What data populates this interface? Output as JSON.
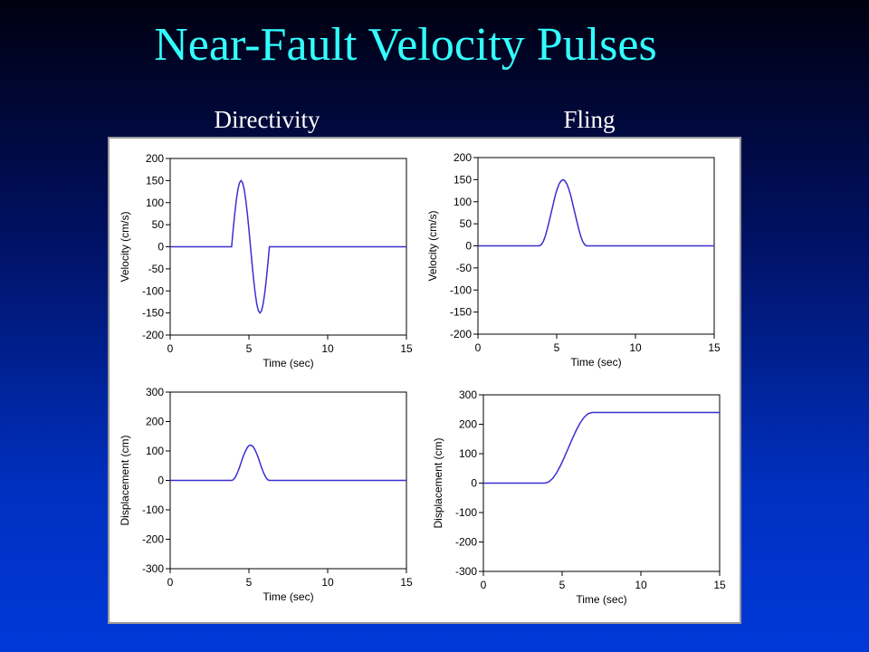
{
  "title": "Near-Fault Velocity Pulses",
  "column_labels": [
    "Directivity",
    "Fling"
  ],
  "chart_data": [
    {
      "type": "line",
      "xlabel": "Time (sec)",
      "ylabel": "Velocity (cm/s)",
      "xlim": [
        0,
        15
      ],
      "xticks": [
        0,
        5,
        10,
        15
      ],
      "ylim": [
        -200,
        200
      ],
      "yticks": [
        -200,
        -150,
        -100,
        -50,
        0,
        50,
        100,
        150,
        200
      ],
      "x": [
        0,
        3.9,
        4.0,
        4.1,
        4.2,
        4.3,
        4.4,
        4.5,
        4.6,
        4.7,
        4.8,
        4.9,
        5.0,
        5.1,
        5.2,
        5.3,
        5.4,
        5.5,
        5.6,
        5.7,
        5.8,
        5.9,
        6.0,
        6.1,
        6.2,
        6.3,
        15
      ],
      "series": [
        {
          "color": "#3a2fd0",
          "values": [
            0,
            0,
            39,
            75,
            106,
            130,
            145,
            150,
            145,
            130,
            106,
            75,
            39,
            0,
            -39,
            -75,
            -106,
            -130,
            -145,
            -150,
            -145,
            -130,
            -106,
            -75,
            -39,
            0,
            0
          ]
        }
      ]
    },
    {
      "type": "line",
      "xlabel": "Time (sec)",
      "ylabel": "Velocity (cm/s)",
      "xlim": [
        0,
        15
      ],
      "xticks": [
        0,
        5,
        10,
        15
      ],
      "ylim": [
        -200,
        200
      ],
      "yticks": [
        -200,
        -150,
        -100,
        -50,
        0,
        50,
        100,
        150,
        200
      ],
      "x": [
        0,
        3.9,
        4.025,
        4.15,
        4.275,
        4.4,
        4.525,
        4.65,
        4.775,
        4.9,
        5.025,
        5.15,
        5.275,
        5.4,
        5.525,
        5.65,
        5.775,
        5.9,
        6.025,
        6.15,
        6.275,
        6.4,
        6.525,
        6.65,
        6.775,
        6.9,
        15
      ],
      "series": [
        {
          "color": "#3a2fd0",
          "values": [
            0,
            0,
            3,
            10,
            22,
            38,
            56,
            75,
            94,
            113,
            128,
            140,
            147,
            150,
            147,
            140,
            128,
            113,
            94,
            75,
            56,
            38,
            22,
            10,
            3,
            0,
            0
          ]
        }
      ]
    },
    {
      "type": "line",
      "xlabel": "Time (sec)",
      "ylabel": "Displacement (cm)",
      "xlim": [
        0,
        15
      ],
      "xticks": [
        0,
        5,
        10,
        15
      ],
      "ylim": [
        -300,
        300
      ],
      "yticks": [
        -300,
        -200,
        -100,
        0,
        100,
        200,
        300
      ],
      "x": [
        0,
        3.9,
        4.0,
        4.1,
        4.2,
        4.3,
        4.4,
        4.5,
        4.6,
        4.7,
        4.8,
        4.9,
        5.0,
        5.1,
        5.2,
        5.3,
        5.4,
        5.5,
        5.6,
        5.7,
        5.8,
        5.9,
        6.0,
        6.1,
        6.2,
        6.3,
        15
      ],
      "series": [
        {
          "color": "#3a2fd0",
          "values": [
            0,
            0,
            2,
            8,
            18,
            30,
            44,
            60,
            76,
            90,
            102,
            112,
            118,
            120,
            118,
            112,
            102,
            90,
            76,
            60,
            44,
            30,
            18,
            8,
            2,
            0,
            0
          ]
        }
      ]
    },
    {
      "type": "line",
      "xlabel": "Time (sec)",
      "ylabel": "Displacement (cm)",
      "xlim": [
        0,
        15
      ],
      "xticks": [
        0,
        5,
        10,
        15
      ],
      "ylim": [
        -300,
        300
      ],
      "yticks": [
        -300,
        -200,
        -100,
        0,
        100,
        200,
        300
      ],
      "x": [
        0,
        3.9,
        4.15,
        4.4,
        4.65,
        4.9,
        5.15,
        5.4,
        5.65,
        5.9,
        6.15,
        6.4,
        6.65,
        6.9,
        15
      ],
      "series": [
        {
          "color": "#3a2fd0",
          "values": [
            0,
            0,
            4,
            16,
            35,
            60,
            89,
            120,
            151,
            180,
            205,
            224,
            236,
            240,
            240
          ]
        }
      ]
    }
  ]
}
